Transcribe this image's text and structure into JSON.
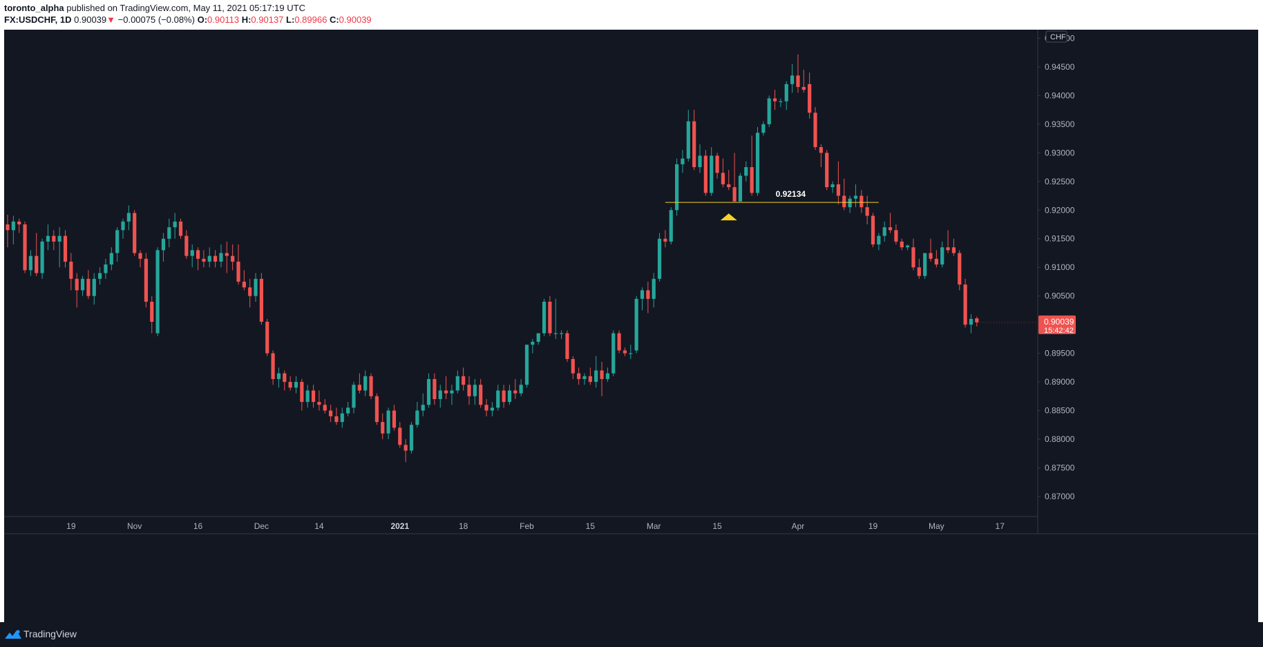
{
  "header": {
    "author": "toronto_alpha",
    "published_text": "published on TradingView.com, May 11, 2021 05:17:19 UTC",
    "symbol": "FX:USDCHF, 1D",
    "last": "0.90039",
    "arrow": "▼",
    "change": "−0.00075 (−0.08%)",
    "open_label": "O:",
    "open": "0.90113",
    "high_label": "H:",
    "high": "0.90137",
    "low_label": "L:",
    "low": "0.89966",
    "close_label": "C:",
    "close": "0.90039"
  },
  "footer": {
    "brand": "TradingView",
    "icon": "tradingview-logo-icon"
  },
  "colors": {
    "background": "#131722",
    "up": "#26a69a",
    "down": "#ef5350",
    "level": "#f5d327",
    "axis_text": "#b2b5be",
    "grid_border": "#363a45"
  },
  "chart_data": {
    "type": "candlestick",
    "symbol": "FX:USDCHF",
    "timeframe": "1D",
    "currency": "CHF",
    "ylim": [
      0.8665,
      0.9515
    ],
    "y_ticks": [
      "0.87000",
      "0.87500",
      "0.88000",
      "0.88500",
      "0.89000",
      "0.89500",
      "0.90000",
      "0.90500",
      "0.91000",
      "0.91500",
      "0.92000",
      "0.92500",
      "0.93000",
      "0.93500",
      "0.94000",
      "0.94500",
      "0.95000"
    ],
    "x_ticks": [
      {
        "i": 11,
        "label": "19",
        "bold": false
      },
      {
        "i": 22,
        "label": "Nov",
        "bold": false
      },
      {
        "i": 33,
        "label": "16",
        "bold": false
      },
      {
        "i": 44,
        "label": "Dec",
        "bold": false
      },
      {
        "i": 54,
        "label": "14",
        "bold": false
      },
      {
        "i": 68,
        "label": "2021",
        "bold": true
      },
      {
        "i": 79,
        "label": "18",
        "bold": false
      },
      {
        "i": 90,
        "label": "Feb",
        "bold": false
      },
      {
        "i": 101,
        "label": "15",
        "bold": false
      },
      {
        "i": 112,
        "label": "Mar",
        "bold": false
      },
      {
        "i": 123,
        "label": "15",
        "bold": false
      },
      {
        "i": 137,
        "label": "Apr",
        "bold": false
      },
      {
        "i": 150,
        "label": "19",
        "bold": false
      },
      {
        "i": 161,
        "label": "May",
        "bold": false
      },
      {
        "i": 172,
        "label": "17",
        "bold": false
      }
    ],
    "last_price_label": "0.90039",
    "countdown": "15:42:42",
    "level": {
      "value": 0.92134,
      "label": "0.92134",
      "from_i": 114,
      "to_i": 151,
      "marker_i": 125,
      "marker": "triangle-up"
    },
    "candles": [
      [
        0.9175,
        0.9192,
        0.9135,
        0.9165
      ],
      [
        0.9165,
        0.919,
        0.914,
        0.918
      ],
      [
        0.918,
        0.9185,
        0.916,
        0.9175
      ],
      [
        0.9175,
        0.918,
        0.909,
        0.9095
      ],
      [
        0.9095,
        0.913,
        0.9085,
        0.912
      ],
      [
        0.912,
        0.916,
        0.9085,
        0.909
      ],
      [
        0.909,
        0.915,
        0.908,
        0.9145
      ],
      [
        0.9145,
        0.9175,
        0.913,
        0.9155
      ],
      [
        0.9155,
        0.9165,
        0.913,
        0.9145
      ],
      [
        0.9145,
        0.917,
        0.91,
        0.9155
      ],
      [
        0.9155,
        0.9165,
        0.91,
        0.911
      ],
      [
        0.911,
        0.9125,
        0.906,
        0.908
      ],
      [
        0.908,
        0.909,
        0.903,
        0.906
      ],
      [
        0.906,
        0.9085,
        0.905,
        0.908
      ],
      [
        0.908,
        0.9095,
        0.9045,
        0.905
      ],
      [
        0.905,
        0.909,
        0.9035,
        0.908
      ],
      [
        0.908,
        0.91,
        0.907,
        0.909
      ],
      [
        0.909,
        0.9115,
        0.908,
        0.9105
      ],
      [
        0.9105,
        0.9135,
        0.9095,
        0.9125
      ],
      [
        0.9125,
        0.917,
        0.911,
        0.9165
      ],
      [
        0.9165,
        0.9185,
        0.915,
        0.918
      ],
      [
        0.918,
        0.9208,
        0.9165,
        0.9195
      ],
      [
        0.9195,
        0.92,
        0.912,
        0.9125
      ],
      [
        0.9125,
        0.913,
        0.91,
        0.9115
      ],
      [
        0.9115,
        0.9125,
        0.903,
        0.904
      ],
      [
        0.904,
        0.905,
        0.8985,
        0.9005
      ],
      [
        0.8985,
        0.9135,
        0.898,
        0.913
      ],
      [
        0.913,
        0.916,
        0.911,
        0.915
      ],
      [
        0.915,
        0.9185,
        0.9135,
        0.917
      ],
      [
        0.917,
        0.9195,
        0.915,
        0.918
      ],
      [
        0.918,
        0.9185,
        0.915,
        0.9155
      ],
      [
        0.9155,
        0.9165,
        0.9115,
        0.912
      ],
      [
        0.912,
        0.914,
        0.91,
        0.913
      ],
      [
        0.913,
        0.9135,
        0.9095,
        0.9115
      ],
      [
        0.9115,
        0.913,
        0.91,
        0.911
      ],
      [
        0.911,
        0.9135,
        0.91,
        0.912
      ],
      [
        0.912,
        0.913,
        0.91,
        0.911
      ],
      [
        0.911,
        0.914,
        0.91,
        0.9125
      ],
      [
        0.9125,
        0.9145,
        0.909,
        0.912
      ],
      [
        0.912,
        0.914,
        0.9095,
        0.911
      ],
      [
        0.911,
        0.914,
        0.907,
        0.9075
      ],
      [
        0.9075,
        0.9095,
        0.906,
        0.9065
      ],
      [
        0.9065,
        0.908,
        0.903,
        0.905
      ],
      [
        0.905,
        0.909,
        0.904,
        0.908
      ],
      [
        0.908,
        0.909,
        0.9,
        0.9005
      ],
      [
        0.9005,
        0.901,
        0.8945,
        0.895
      ],
      [
        0.895,
        0.8955,
        0.8895,
        0.8905
      ],
      [
        0.8905,
        0.8925,
        0.889,
        0.8915
      ],
      [
        0.8915,
        0.892,
        0.8885,
        0.89
      ],
      [
        0.89,
        0.891,
        0.8885,
        0.889
      ],
      [
        0.889,
        0.891,
        0.888,
        0.89
      ],
      [
        0.89,
        0.8905,
        0.885,
        0.8865
      ],
      [
        0.8865,
        0.8895,
        0.8855,
        0.8885
      ],
      [
        0.8885,
        0.8895,
        0.8855,
        0.8865
      ],
      [
        0.8865,
        0.8885,
        0.885,
        0.886
      ],
      [
        0.886,
        0.887,
        0.8845,
        0.885
      ],
      [
        0.885,
        0.886,
        0.883,
        0.884
      ],
      [
        0.884,
        0.8855,
        0.8825,
        0.883
      ],
      [
        0.883,
        0.8855,
        0.882,
        0.8845
      ],
      [
        0.8845,
        0.8865,
        0.884,
        0.8855
      ],
      [
        0.8855,
        0.89,
        0.8845,
        0.8895
      ],
      [
        0.8895,
        0.8915,
        0.888,
        0.8885
      ],
      [
        0.8885,
        0.892,
        0.8875,
        0.891
      ],
      [
        0.891,
        0.8915,
        0.887,
        0.8875
      ],
      [
        0.8875,
        0.888,
        0.8825,
        0.883
      ],
      [
        0.883,
        0.8845,
        0.88,
        0.881
      ],
      [
        0.881,
        0.8855,
        0.88,
        0.885
      ],
      [
        0.885,
        0.886,
        0.8815,
        0.882
      ],
      [
        0.882,
        0.883,
        0.8785,
        0.879
      ],
      [
        0.879,
        0.88,
        0.876,
        0.878
      ],
      [
        0.878,
        0.883,
        0.8775,
        0.8825
      ],
      [
        0.8825,
        0.8865,
        0.882,
        0.885
      ],
      [
        0.885,
        0.888,
        0.884,
        0.886
      ],
      [
        0.886,
        0.8915,
        0.8855,
        0.8905
      ],
      [
        0.8905,
        0.8915,
        0.886,
        0.887
      ],
      [
        0.887,
        0.8895,
        0.8855,
        0.8885
      ],
      [
        0.8885,
        0.891,
        0.887,
        0.888
      ],
      [
        0.888,
        0.8895,
        0.886,
        0.8885
      ],
      [
        0.8885,
        0.892,
        0.888,
        0.891
      ],
      [
        0.891,
        0.8925,
        0.8885,
        0.8895
      ],
      [
        0.8895,
        0.891,
        0.886,
        0.8875
      ],
      [
        0.8875,
        0.8905,
        0.886,
        0.8895
      ],
      [
        0.8895,
        0.8905,
        0.8855,
        0.886
      ],
      [
        0.886,
        0.887,
        0.884,
        0.885
      ],
      [
        0.885,
        0.8865,
        0.884,
        0.8855
      ],
      [
        0.8855,
        0.8895,
        0.885,
        0.8885
      ],
      [
        0.8885,
        0.8895,
        0.8855,
        0.8865
      ],
      [
        0.8865,
        0.8895,
        0.886,
        0.8885
      ],
      [
        0.8885,
        0.8905,
        0.887,
        0.888
      ],
      [
        0.888,
        0.8905,
        0.8875,
        0.8895
      ],
      [
        0.8895,
        0.896,
        0.889,
        0.8965
      ],
      [
        0.8965,
        0.8975,
        0.895,
        0.897
      ],
      [
        0.897,
        0.8985,
        0.8965,
        0.8985
      ],
      [
        0.8985,
        0.9045,
        0.898,
        0.904
      ],
      [
        0.904,
        0.905,
        0.898,
        0.8985
      ],
      [
        0.8985,
        0.9045,
        0.8975,
        0.8985
      ],
      [
        0.8985,
        0.899,
        0.8975,
        0.8985
      ],
      [
        0.8985,
        0.899,
        0.8935,
        0.894
      ],
      [
        0.894,
        0.8945,
        0.8905,
        0.8915
      ],
      [
        0.8915,
        0.8925,
        0.8895,
        0.8905
      ],
      [
        0.8905,
        0.8915,
        0.8895,
        0.891
      ],
      [
        0.891,
        0.8925,
        0.8895,
        0.89
      ],
      [
        0.89,
        0.8945,
        0.889,
        0.892
      ],
      [
        0.892,
        0.8935,
        0.8875,
        0.8905
      ],
      [
        0.8905,
        0.8925,
        0.89,
        0.8915
      ],
      [
        0.8915,
        0.899,
        0.891,
        0.8985
      ],
      [
        0.8985,
        0.899,
        0.895,
        0.8955
      ],
      [
        0.8955,
        0.896,
        0.8945,
        0.895
      ],
      [
        0.895,
        0.8965,
        0.894,
        0.895
      ],
      [
        0.8955,
        0.905,
        0.895,
        0.9045
      ],
      [
        0.9045,
        0.9065,
        0.9025,
        0.906
      ],
      [
        0.906,
        0.9075,
        0.902,
        0.9045
      ],
      [
        0.9045,
        0.909,
        0.903,
        0.908
      ],
      [
        0.908,
        0.916,
        0.9075,
        0.915
      ],
      [
        0.915,
        0.9165,
        0.9135,
        0.9145
      ],
      [
        0.9145,
        0.9205,
        0.914,
        0.92
      ],
      [
        0.92,
        0.929,
        0.919,
        0.928
      ],
      [
        0.928,
        0.9305,
        0.9265,
        0.929
      ],
      [
        0.929,
        0.9375,
        0.9285,
        0.9355
      ],
      [
        0.9355,
        0.9375,
        0.927,
        0.9275
      ],
      [
        0.9275,
        0.9315,
        0.9265,
        0.9295
      ],
      [
        0.9295,
        0.9305,
        0.9225,
        0.923
      ],
      [
        0.923,
        0.931,
        0.9225,
        0.9295
      ],
      [
        0.9295,
        0.93,
        0.9255,
        0.9265
      ],
      [
        0.9265,
        0.929,
        0.924,
        0.9245
      ],
      [
        0.9245,
        0.927,
        0.9235,
        0.924
      ],
      [
        0.924,
        0.93,
        0.9215,
        0.9215
      ],
      [
        0.9215,
        0.9265,
        0.9215,
        0.926
      ],
      [
        0.926,
        0.9285,
        0.925,
        0.9275
      ],
      [
        0.9275,
        0.933,
        0.9225,
        0.923
      ],
      [
        0.923,
        0.9345,
        0.9225,
        0.9335
      ],
      [
        0.9335,
        0.9355,
        0.933,
        0.935
      ],
      [
        0.935,
        0.94,
        0.9345,
        0.9395
      ],
      [
        0.9395,
        0.941,
        0.9375,
        0.939
      ],
      [
        0.939,
        0.9395,
        0.938,
        0.939
      ],
      [
        0.939,
        0.9425,
        0.9375,
        0.942
      ],
      [
        0.942,
        0.9455,
        0.9405,
        0.9435
      ],
      [
        0.9435,
        0.9472,
        0.9405,
        0.9415
      ],
      [
        0.9415,
        0.9445,
        0.9405,
        0.941
      ],
      [
        0.942,
        0.944,
        0.936,
        0.937
      ],
      [
        0.937,
        0.938,
        0.9305,
        0.931
      ],
      [
        0.931,
        0.9315,
        0.9275,
        0.93
      ],
      [
        0.93,
        0.9305,
        0.9235,
        0.924
      ],
      [
        0.924,
        0.925,
        0.923,
        0.9245
      ],
      [
        0.9245,
        0.9285,
        0.921,
        0.9225
      ],
      [
        0.9225,
        0.9255,
        0.92,
        0.9205
      ],
      [
        0.9205,
        0.9225,
        0.9195,
        0.922
      ],
      [
        0.922,
        0.9245,
        0.9205,
        0.9225
      ],
      [
        0.9225,
        0.9235,
        0.9195,
        0.9205
      ],
      [
        0.9205,
        0.9225,
        0.9175,
        0.919
      ],
      [
        0.919,
        0.9195,
        0.9135,
        0.914
      ],
      [
        0.914,
        0.916,
        0.913,
        0.9155
      ],
      [
        0.9155,
        0.918,
        0.9145,
        0.917
      ],
      [
        0.917,
        0.9195,
        0.916,
        0.9165
      ],
      [
        0.9165,
        0.9175,
        0.914,
        0.9145
      ],
      [
        0.9145,
        0.915,
        0.913,
        0.9135
      ],
      [
        0.9135,
        0.914,
        0.913,
        0.9138
      ],
      [
        0.9135,
        0.915,
        0.9095,
        0.91
      ],
      [
        0.91,
        0.9115,
        0.908,
        0.9085
      ],
      [
        0.9085,
        0.9125,
        0.908,
        0.9125
      ],
      [
        0.9125,
        0.915,
        0.911,
        0.9115
      ],
      [
        0.9115,
        0.913,
        0.91,
        0.9105
      ],
      [
        0.9105,
        0.9145,
        0.91,
        0.9135
      ],
      [
        0.9135,
        0.9165,
        0.9125,
        0.913
      ],
      [
        0.9135,
        0.915,
        0.912,
        0.9125
      ],
      [
        0.9125,
        0.913,
        0.906,
        0.907
      ],
      [
        0.907,
        0.908,
        0.8995,
        0.9
      ],
      [
        0.9,
        0.9018,
        0.8985,
        0.901
      ],
      [
        0.9011,
        0.9014,
        0.8997,
        0.9004
      ]
    ]
  }
}
